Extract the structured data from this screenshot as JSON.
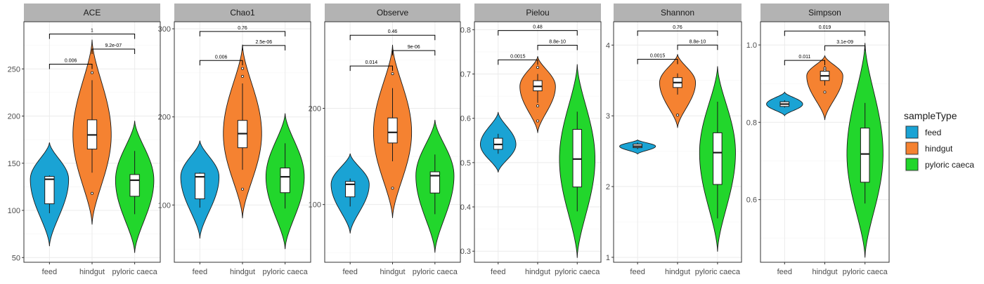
{
  "colors": {
    "feed": "#1aa3d4",
    "hindgut": "#f58231",
    "pyloric caeca": "#22d62c"
  },
  "legend": {
    "title": "sampleType",
    "items": [
      {
        "label": "feed",
        "color": "#1aa3d4"
      },
      {
        "label": "hindgut",
        "color": "#f58231"
      },
      {
        "label": "pyloric caeca",
        "color": "#22d62c"
      }
    ]
  },
  "chart_data": [
    {
      "type": "violin",
      "title": "ACE",
      "categories": [
        "feed",
        "hindgut",
        "pyloric caeca"
      ],
      "ylim": [
        45,
        300
      ],
      "yticks": [
        50,
        100,
        150,
        200,
        250
      ],
      "groups": [
        {
          "name": "feed",
          "violin": [
            62,
            172
          ],
          "box": {
            "min": 97,
            "q1": 107,
            "median": 133,
            "q3": 136,
            "max": 137
          },
          "outliers": []
        },
        {
          "name": "hindgut",
          "violin": [
            85,
            281
          ],
          "box": {
            "min": 140,
            "q1": 165,
            "median": 180,
            "q3": 196,
            "max": 238
          },
          "outliers": [
            246,
            118
          ]
        },
        {
          "name": "pyloric caeca",
          "violin": [
            55,
            195
          ],
          "box": {
            "min": 96,
            "q1": 115,
            "median": 132,
            "q3": 138,
            "max": 163
          },
          "outliers": []
        }
      ],
      "comparisons": [
        {
          "groups": [
            "feed",
            "hindgut"
          ],
          "label": "0.006",
          "y": 255
        },
        {
          "groups": [
            "hindgut",
            "pyloric caeca"
          ],
          "label": "9.2e-07",
          "y": 271
        },
        {
          "groups": [
            "feed",
            "pyloric caeca"
          ],
          "label": "1",
          "y": 287
        }
      ]
    },
    {
      "type": "violin",
      "title": "Chao1",
      "categories": [
        "feed",
        "hindgut",
        "pyloric caeca"
      ],
      "ylim": [
        35,
        308
      ],
      "yticks": [
        100,
        200,
        300
      ],
      "groups": [
        {
          "name": "feed",
          "violin": [
            62,
            173
          ],
          "box": {
            "min": 97,
            "q1": 107,
            "median": 132,
            "q3": 136,
            "max": 137
          },
          "outliers": []
        },
        {
          "name": "hindgut",
          "violin": [
            85,
            282
          ],
          "box": {
            "min": 140,
            "q1": 165,
            "median": 181,
            "q3": 196,
            "max": 238
          },
          "outliers": [
            255,
            246,
            118
          ]
        },
        {
          "name": "pyloric caeca",
          "violin": [
            50,
            204
          ],
          "box": {
            "min": 96,
            "q1": 114,
            "median": 132,
            "q3": 142,
            "max": 170
          },
          "outliers": []
        }
      ],
      "comparisons": [
        {
          "groups": [
            "feed",
            "hindgut"
          ],
          "label": "0.006",
          "y": 264
        },
        {
          "groups": [
            "hindgut",
            "pyloric caeca"
          ],
          "label": "2.5e-06",
          "y": 281
        },
        {
          "groups": [
            "feed",
            "pyloric caeca"
          ],
          "label": "0.76",
          "y": 297
        }
      ]
    },
    {
      "type": "violin",
      "title": "Observe",
      "categories": [
        "feed",
        "hindgut",
        "pyloric caeca"
      ],
      "ylim": [
        40,
        290
      ],
      "yticks": [
        100,
        200
      ],
      "groups": [
        {
          "name": "feed",
          "violin": [
            70,
            153
          ],
          "box": {
            "min": 98,
            "q1": 108,
            "median": 121,
            "q3": 124,
            "max": 127
          },
          "outliers": []
        },
        {
          "name": "hindgut",
          "violin": [
            86,
            266
          ],
          "box": {
            "min": 145,
            "q1": 164,
            "median": 175,
            "q3": 190,
            "max": 221
          },
          "outliers": [
            236,
            117
          ]
        },
        {
          "name": "pyloric caeca",
          "violin": [
            50,
            188
          ],
          "box": {
            "min": 90,
            "q1": 112,
            "median": 130,
            "q3": 134,
            "max": 152
          },
          "outliers": []
        }
      ],
      "comparisons": [
        {
          "groups": [
            "feed",
            "hindgut"
          ],
          "label": "0.014",
          "y": 244
        },
        {
          "groups": [
            "hindgut",
            "pyloric caeca"
          ],
          "label": "9e-06",
          "y": 260
        },
        {
          "groups": [
            "feed",
            "pyloric caeca"
          ],
          "label": "0.46",
          "y": 276
        }
      ]
    },
    {
      "type": "violin",
      "title": "Pielou",
      "categories": [
        "feed",
        "hindgut",
        "pyloric caeca"
      ],
      "ylim": [
        0.275,
        0.818
      ],
      "yticks": [
        0.3,
        0.4,
        0.5,
        0.6,
        0.7,
        0.8
      ],
      "groups": [
        {
          "name": "feed",
          "violin": [
            0.478,
            0.614
          ],
          "box": {
            "min": 0.52,
            "q1": 0.53,
            "median": 0.541,
            "q3": 0.555,
            "max": 0.565
          },
          "outliers": []
        },
        {
          "name": "hindgut",
          "violin": [
            0.567,
            0.74
          ],
          "box": {
            "min": 0.635,
            "q1": 0.662,
            "median": 0.672,
            "q3": 0.685,
            "max": 0.7
          },
          "outliers": [
            0.715,
            0.628,
            0.594
          ]
        },
        {
          "name": "pyloric caeca",
          "violin": [
            0.285,
            0.722
          ],
          "box": {
            "min": 0.39,
            "q1": 0.445,
            "median": 0.508,
            "q3": 0.575,
            "max": 0.615
          },
          "outliers": []
        }
      ],
      "comparisons": [
        {
          "groups": [
            "feed",
            "hindgut"
          ],
          "label": "0.0015",
          "y": 0.732
        },
        {
          "groups": [
            "hindgut",
            "pyloric caeca"
          ],
          "label": "8.8e-10",
          "y": 0.765
        },
        {
          "groups": [
            "feed",
            "pyloric caeca"
          ],
          "label": "0.48",
          "y": 0.798
        }
      ]
    },
    {
      "type": "violin",
      "title": "Shannon",
      "categories": [
        "feed",
        "hindgut",
        "pyloric caeca"
      ],
      "ylim": [
        0.93,
        4.33
      ],
      "yticks": [
        1,
        2,
        3,
        4
      ],
      "groups": [
        {
          "name": "feed",
          "violin": [
            2.46,
            2.66
          ],
          "box": {
            "min": 2.53,
            "q1": 2.55,
            "median": 2.57,
            "q3": 2.6,
            "max": 2.62
          },
          "outliers": []
        },
        {
          "name": "hindgut",
          "violin": [
            2.83,
            3.87
          ],
          "box": {
            "min": 3.3,
            "q1": 3.4,
            "median": 3.47,
            "q3": 3.54,
            "max": 3.6
          },
          "outliers": [
            3.01
          ]
        },
        {
          "name": "pyloric caeca",
          "violin": [
            1.08,
            3.7
          ],
          "box": {
            "min": 1.55,
            "q1": 2.03,
            "median": 2.48,
            "q3": 2.76,
            "max": 3.2
          },
          "outliers": []
        }
      ],
      "comparisons": [
        {
          "groups": [
            "feed",
            "hindgut"
          ],
          "label": "0.0015",
          "y": 3.8
        },
        {
          "groups": [
            "hindgut",
            "pyloric caeca"
          ],
          "label": "8.8e-10",
          "y": 4.0
        },
        {
          "groups": [
            "feed",
            "pyloric caeca"
          ],
          "label": "0.76",
          "y": 4.2
        }
      ]
    },
    {
      "type": "violin",
      "title": "Simpson",
      "categories": [
        "feed",
        "hindgut",
        "pyloric caeca"
      ],
      "ylim": [
        0.438,
        1.06
      ],
      "yticks": [
        0.6,
        0.8,
        1.0
      ],
      "ytick_labels": [
        "0.6",
        "0.8",
        "1.0"
      ],
      "groups": [
        {
          "name": "feed",
          "violin": [
            0.817,
            0.878
          ],
          "box": {
            "min": 0.838,
            "q1": 0.841,
            "median": 0.847,
            "q3": 0.853,
            "max": 0.857
          },
          "outliers": []
        },
        {
          "name": "hindgut",
          "violin": [
            0.806,
            0.972
          ],
          "box": {
            "min": 0.895,
            "q1": 0.908,
            "median": 0.92,
            "q3": 0.932,
            "max": 0.945
          },
          "outliers": [
            0.878,
            0.94,
            0.935
          ]
        },
        {
          "name": "pyloric caeca",
          "violin": [
            0.45,
            1.005
          ],
          "box": {
            "min": 0.59,
            "q1": 0.645,
            "median": 0.718,
            "q3": 0.785,
            "max": 0.85
          },
          "outliers": []
        }
      ],
      "comparisons": [
        {
          "groups": [
            "feed",
            "hindgut"
          ],
          "label": "0.011",
          "y": 0.96
        },
        {
          "groups": [
            "hindgut",
            "pyloric caeca"
          ],
          "label": "3.1e-09",
          "y": 0.998
        },
        {
          "groups": [
            "feed",
            "pyloric caeca"
          ],
          "label": "0.019",
          "y": 1.036
        }
      ]
    }
  ]
}
